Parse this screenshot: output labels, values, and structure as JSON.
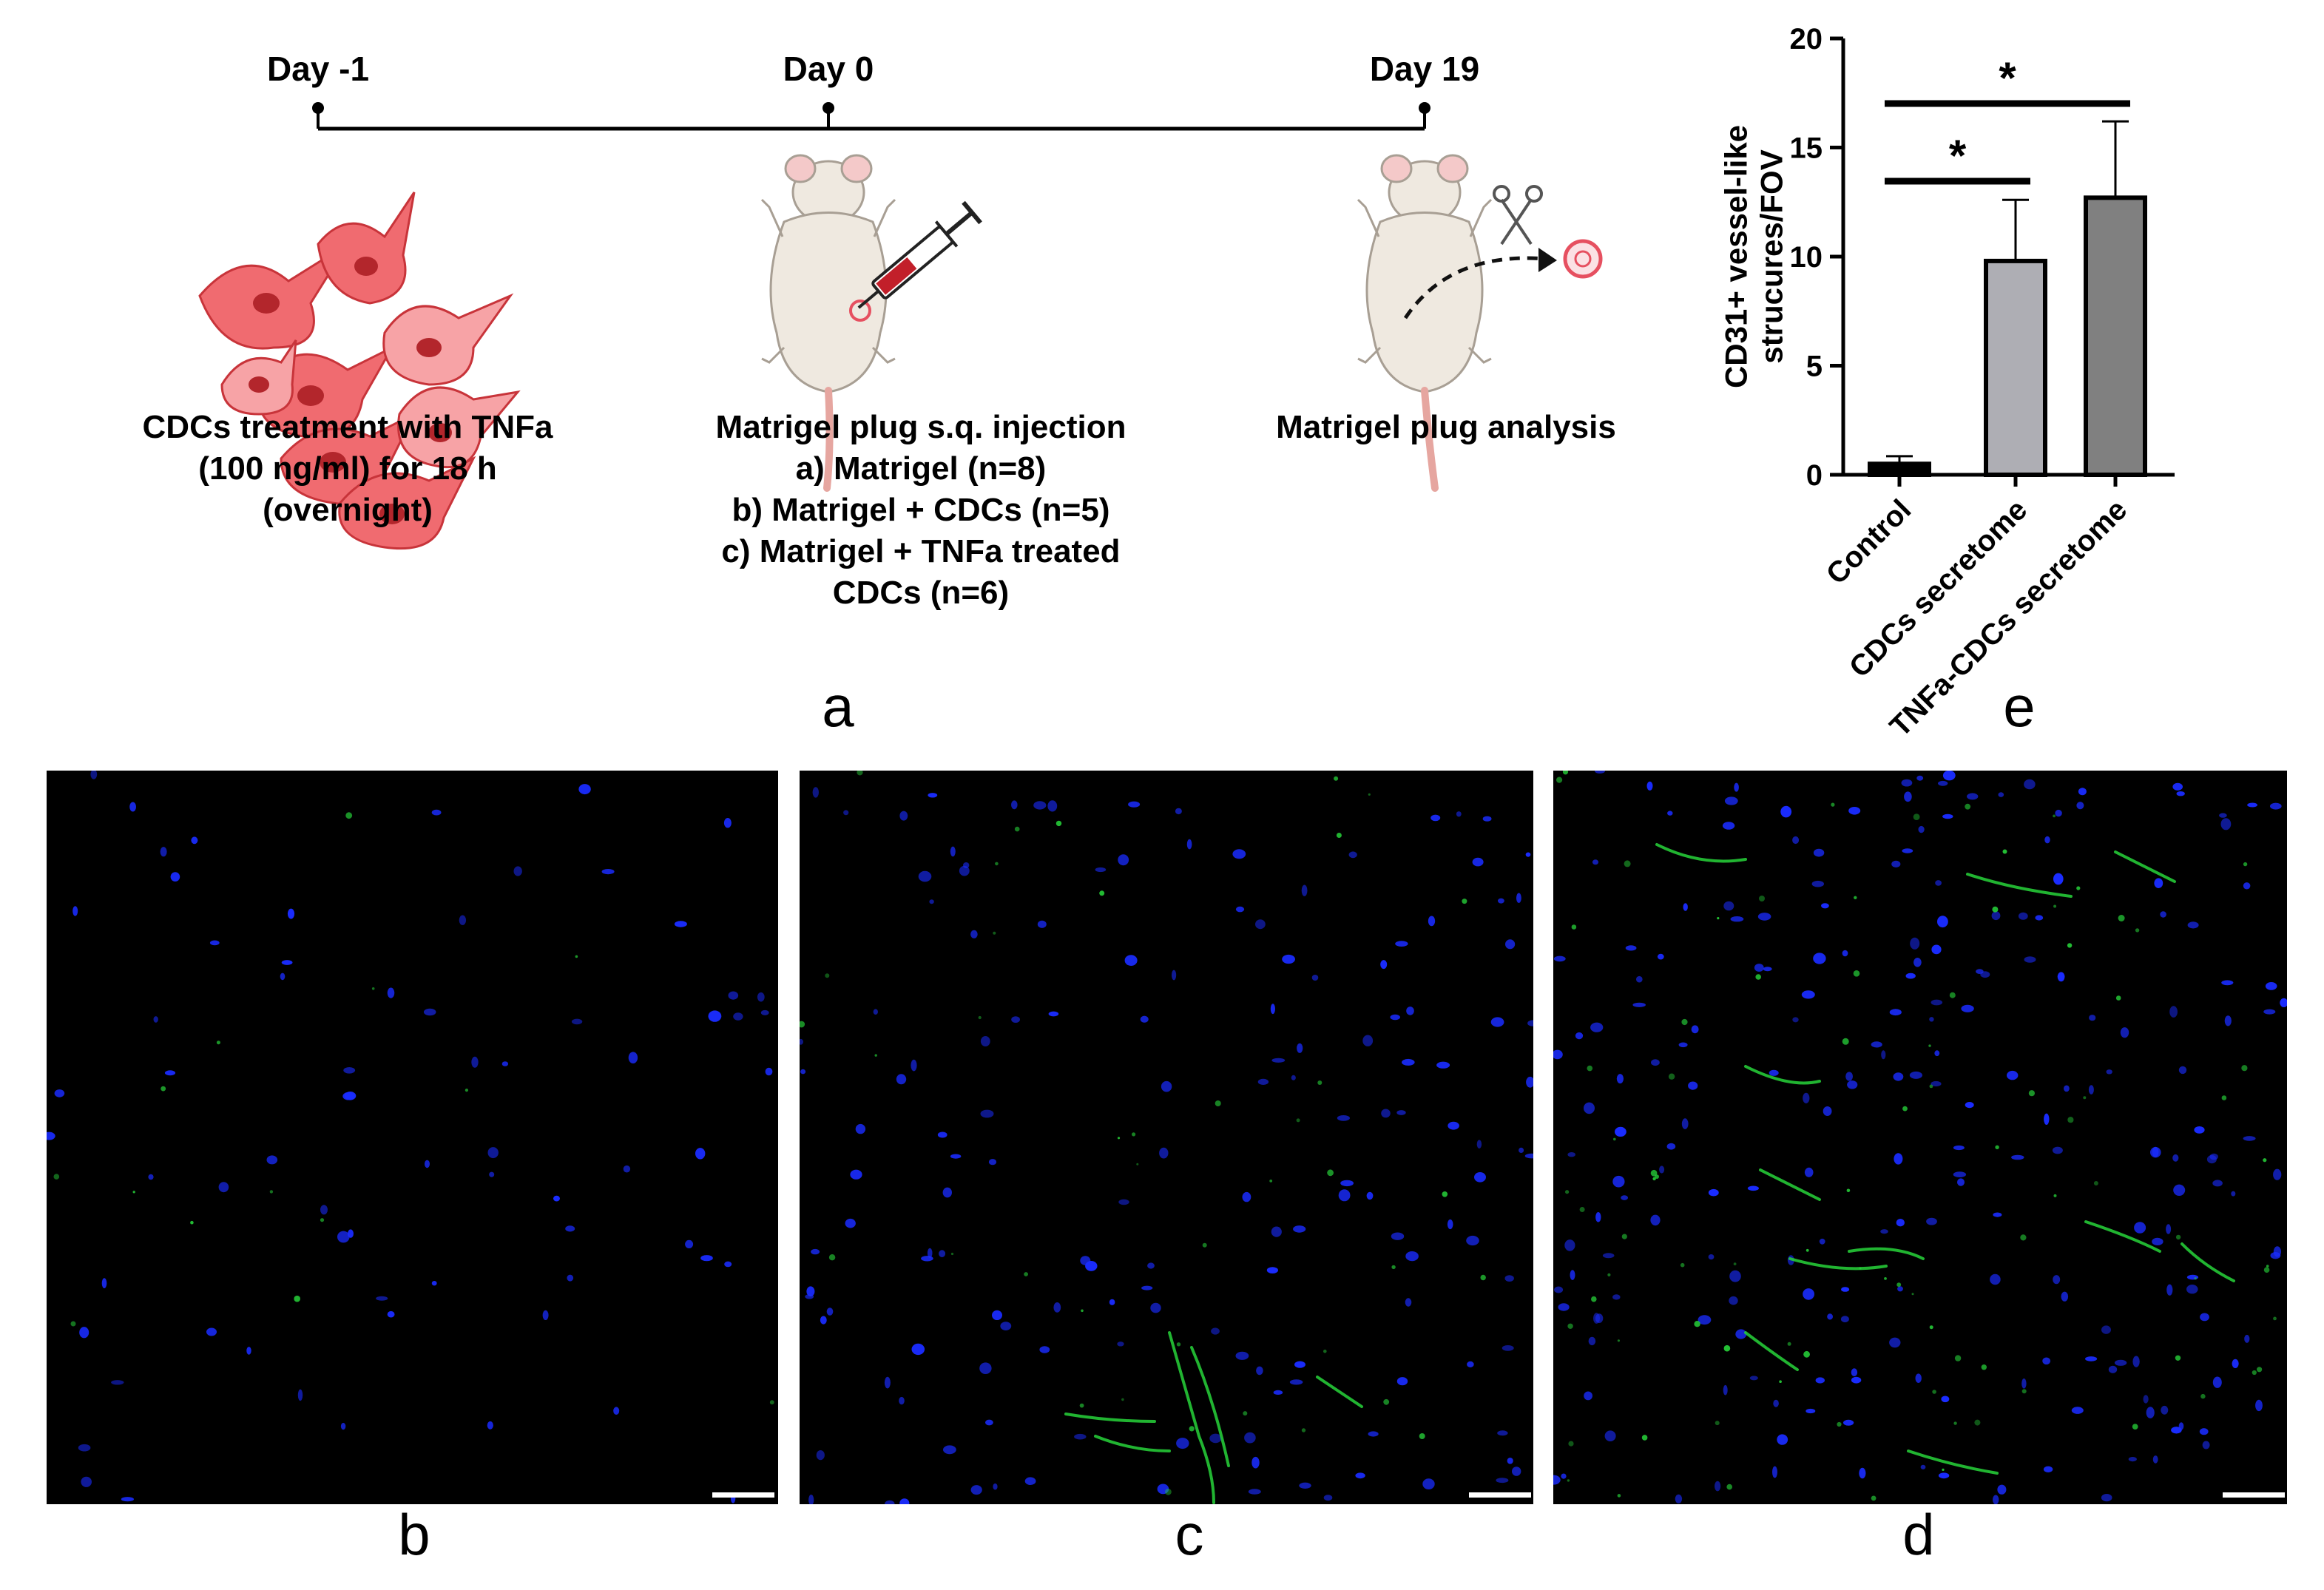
{
  "panel_a": {
    "timeline": [
      {
        "label": "Day -1"
      },
      {
        "label": "Day 0"
      },
      {
        "label": "Day 19"
      }
    ],
    "steps": [
      {
        "lines": [
          "CDCs treatment with TNFa",
          "(100 ng/ml) for 18 h",
          "(overnight)"
        ]
      },
      {
        "lines": [
          "Matrigel plug s.q. injection",
          "a) Matrigel (n=8)",
          "b) Matrigel + CDCs (n=5)",
          "c) Matrigel + TNFa treated",
          "CDCs (n=6)"
        ]
      },
      {
        "lines": [
          "Matrigel plug analysis"
        ]
      }
    ],
    "letter": "a"
  },
  "panel_e": {
    "letter": "e",
    "significance_marks": [
      {
        "from": "Control",
        "to": "CDCs secretome",
        "label": "*"
      },
      {
        "from": "Control",
        "to": "TNFa-CDCs secretome",
        "label": "*"
      }
    ]
  },
  "chart_data": {
    "type": "bar",
    "categories": [
      "Control",
      "CDCs secretome",
      "TNFa-CDCs secretome"
    ],
    "values": [
      0.5,
      9.8,
      12.7
    ],
    "error_upper": [
      0.85,
      12.6,
      16.2
    ],
    "bar_colors": [
      "#000000",
      "#aeaeb4",
      "#808080"
    ],
    "ylabel": "CD31+ vessel-like strucures/FOV",
    "xlabel": "",
    "ylim": [
      0,
      20
    ],
    "yticks": [
      0,
      5,
      10,
      15,
      20
    ],
    "grid": false
  },
  "micrographs": [
    {
      "letter": "b",
      "nuclei_color": "#1a2cff",
      "vessel_color": "#27d43a"
    },
    {
      "letter": "c",
      "nuclei_color": "#1a2cff",
      "vessel_color": "#27d43a"
    },
    {
      "letter": "d",
      "nuclei_color": "#1a2cff",
      "vessel_color": "#27d43a"
    }
  ]
}
